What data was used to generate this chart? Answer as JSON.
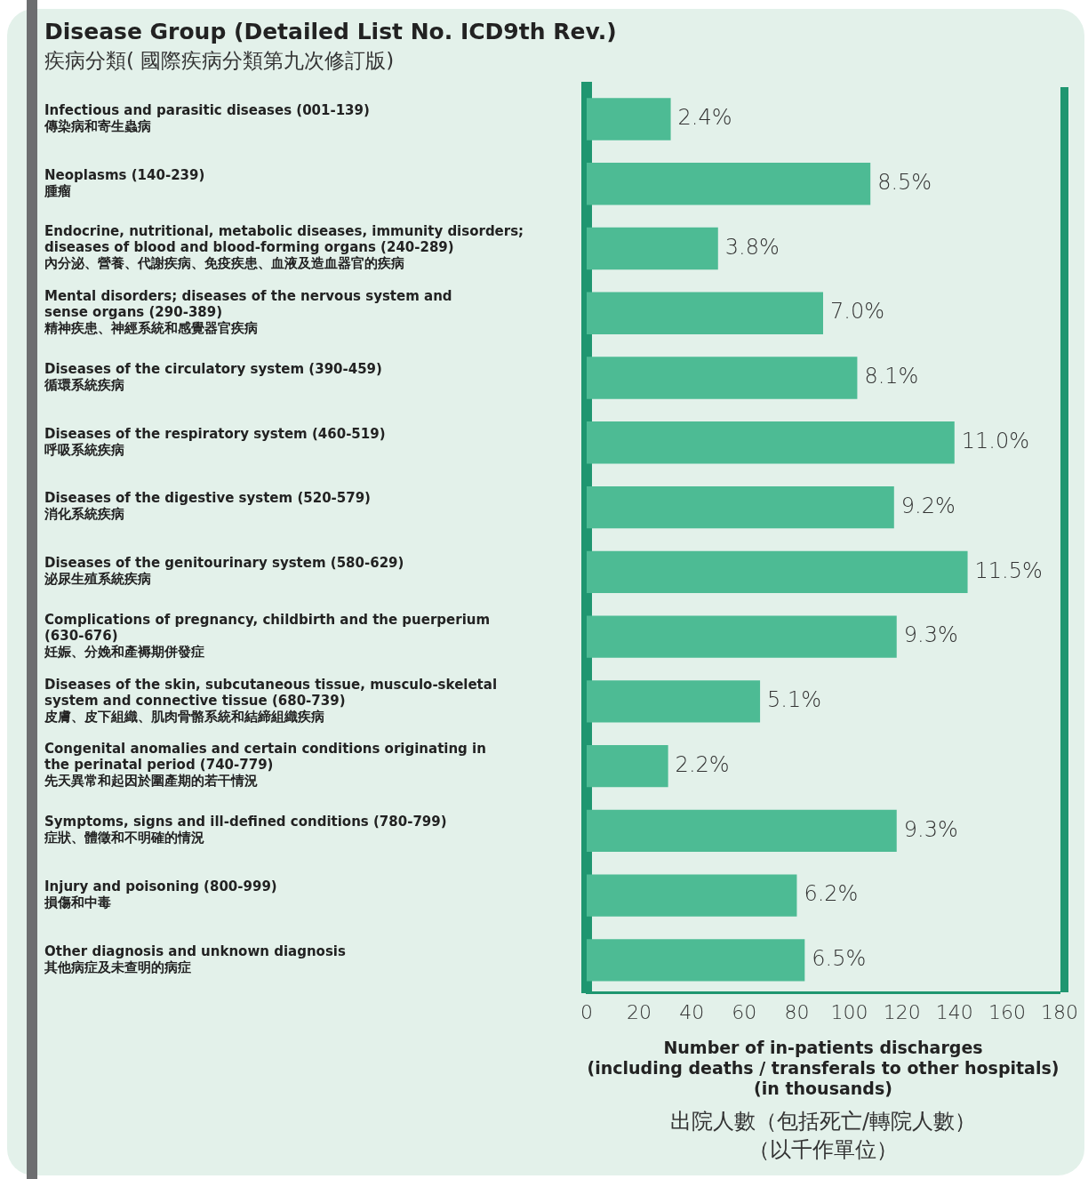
{
  "chart_data": {
    "type": "bar",
    "orientation": "horizontal",
    "title": "Disease Group (Detailed List No. ICD9th Rev.)",
    "subtitle": "疾病分類( 國際疾病分類第九次修訂版)",
    "xlabel": "Number of in-patients discharges\n(including deaths / transferals to other hospitals)\n(in thousands)",
    "categories": [
      "Infectious and parasitic diseases (001-139)\n傳染病和寄生蟲病",
      "Neoplasms (140-239)\n腫瘤",
      "Endocrine, nutritional, metabolic diseases, immunity disorders;\ndiseases of blood and blood-forming organs (240-289)\n內分泌、營養、代謝疾病、免疫疾患、血液及造血器官的疾病",
      "Mental disorders; diseases of the nervous system and\nsense organs (290-389)\n精神疾患、神經系統和感覺器官疾病",
      "Diseases of the circulatory system (390-459)\n循環系統疾病",
      "Diseases of the respiratory system (460-519)\n呼吸系統疾病",
      "Diseases of the digestive system (520-579)\n消化系統疾病",
      "Diseases of the genitourinary system (580-629)\n泌尿生殖系統疾病",
      "Complications of pregnancy, childbirth and the puerperium\n(630-676)\n妊娠、分娩和產褥期併發症",
      "Diseases of the skin, subcutaneous tissue, musculo-skeletal\nsystem and connective tissue (680-739)\n皮膚、皮下組織、肌肉骨骼系統和結締組織疾病",
      "Congenital anomalies and certain conditions originating in\nthe perinatal period (740-779)\n先天異常和起因於圍產期的若干情況",
      "Symptoms, signs and ill-defined conditions (780-799)\n症狀、體徵和不明確的情況",
      "Injury and poisoning (800-999)\n損傷和中毒",
      "Other diagnosis and unknown diagnosis\n其他病症及未查明的病症"
    ],
    "values": [
      32,
      108,
      50,
      90,
      103,
      140,
      117,
      145,
      118,
      66,
      31,
      118,
      80,
      83
    ],
    "color": "#4dbb94",
    "xlim": [
      0,
      180
    ],
    "xticks": [
      0,
      20,
      40,
      60,
      80,
      100,
      120,
      140,
      160,
      180
    ],
    "grid": false,
    "legend": false,
    "annotations": [
      {
        "text": "2.4%",
        "x": 32,
        "y": "Infectious and parasitic diseases (001-139)\n傳染病和寄生蟲病"
      },
      {
        "text": "8.5%",
        "x": 108,
        "y": "Neoplasms (140-239)\n腫瘤"
      },
      {
        "text": "3.8%",
        "x": 50,
        "y": "Endocrine, nutritional, metabolic diseases, immunity disorders;\ndiseases of blood and blood-forming organs (240-289)\n內分泌、營養、代謝疾病、免疫疾患、血液及造血器官的疾病"
      },
      {
        "text": "7.0%",
        "x": 90,
        "y": "Mental disorders; diseases of the nervous system and\nsense organs (290-389)\n精神疾患、神經系統和感覺器官疾病"
      },
      {
        "text": "8.1%",
        "x": 103,
        "y": "Diseases of the circulatory system (390-459)\n循環系統疾病"
      },
      {
        "text": "11.0%",
        "x": 140,
        "y": "Diseases of the respiratory system (460-519)\n呼吸系統疾病"
      },
      {
        "text": "9.2%",
        "x": 117,
        "y": "Diseases of the digestive system (520-579)\n消化系統疾病"
      },
      {
        "text": "11.5%",
        "x": 145,
        "y": "Diseases of the genitourinary system (580-629)\n泌尿生殖系統疾病"
      },
      {
        "text": "9.3%",
        "x": 118,
        "y": "Complications of pregnancy, childbirth and the puerperium\n(630-676)\n妊娠、分娩和產褥期併發症"
      },
      {
        "text": "5.1%",
        "x": 66,
        "y": "Diseases of the skin, subcutaneous tissue, musculo-skeletal\nsystem and connective tissue (680-739)\n皮膚、皮下組織、肌肉骨骼系統和結締組織疾病"
      },
      {
        "text": "2.2%",
        "x": 31,
        "y": "Congenital anomalies and certain conditions originating in\nthe perinatal period (740-779)\n先天異常和起因於圍產期的若干情況"
      },
      {
        "text": "9.3%",
        "x": 118,
        "y": "Symptoms, signs and ill-defined conditions (780-799)\n症狀、體徵和不明確的情況"
      },
      {
        "text": "6.2%",
        "x": 80,
        "y": "Injury and poisoning (800-999)\n損傷和中毒"
      },
      {
        "text": "6.5%",
        "x": 83,
        "y": "Other diagnosis and unknown diagnosis\n其他病症及未查明的病症"
      },
      "出院人數（包括死亡/轉院人數）（以千作單位）"
    ]
  }
}
